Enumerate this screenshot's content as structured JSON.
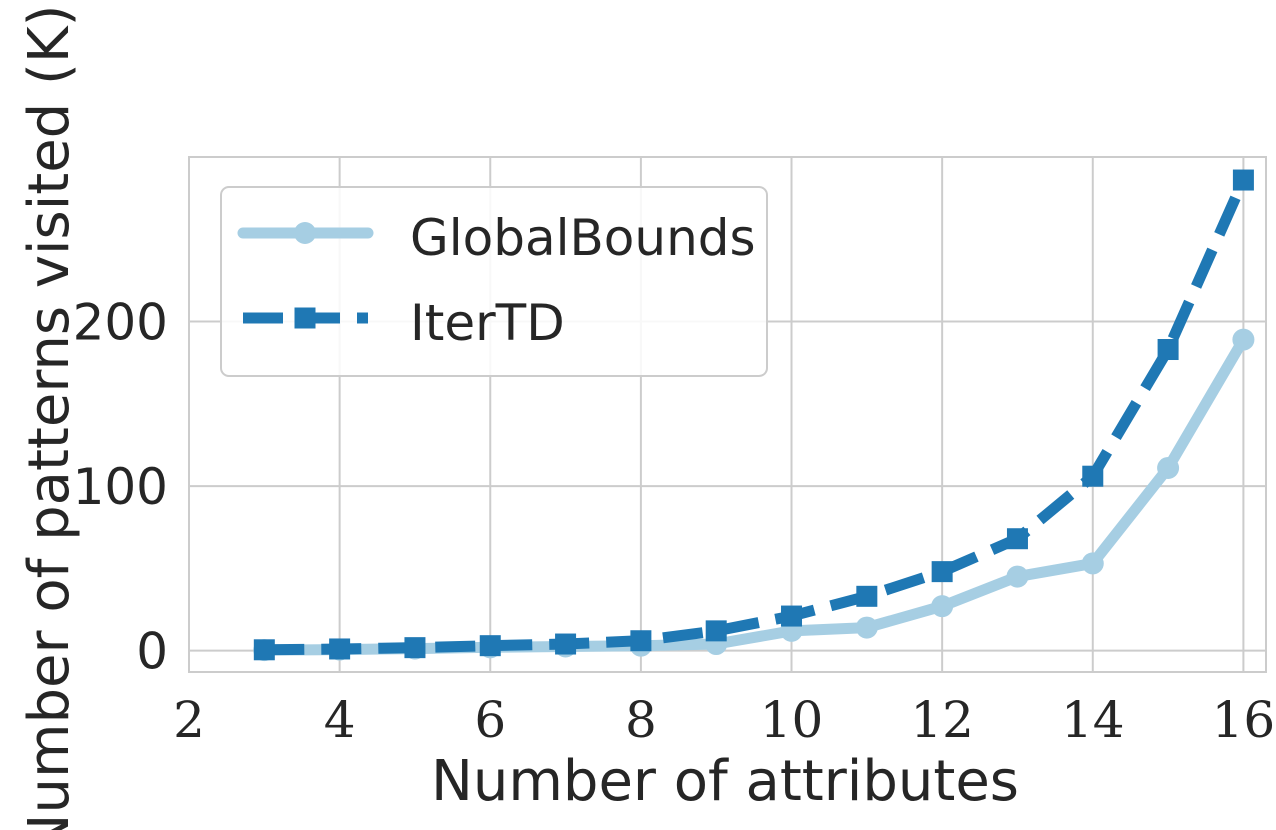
{
  "chart_data": {
    "type": "line",
    "xlabel": "Number of attributes",
    "ylabel": "Number of patterns visited (K)",
    "xlim": [
      2,
      16.3
    ],
    "ylim": [
      -13,
      300
    ],
    "xticks": [
      "2",
      "4",
      "6",
      "8",
      "10",
      "12",
      "14",
      "16"
    ],
    "yticks": [
      "0",
      "100",
      "200"
    ],
    "grid": true,
    "legend_position": "top-left",
    "x": [
      3,
      4,
      5,
      6,
      7,
      8,
      9,
      10,
      11,
      12,
      13,
      14,
      15,
      16
    ],
    "series": [
      {
        "name": "GlobalBounds",
        "color": "#a6cee3",
        "marker": "circle",
        "linestyle": "solid",
        "values": [
          0.3,
          0.6,
          1.2,
          2,
          2.5,
          3,
          4,
          12,
          14,
          27,
          45,
          53,
          111,
          189
        ]
      },
      {
        "name": "IterTD",
        "color": "#1f78b4",
        "marker": "square",
        "linestyle": "dashed",
        "values": [
          0.5,
          1,
          1.8,
          3,
          4,
          6,
          12,
          21,
          33,
          48,
          68,
          106,
          183,
          286
        ]
      }
    ]
  }
}
